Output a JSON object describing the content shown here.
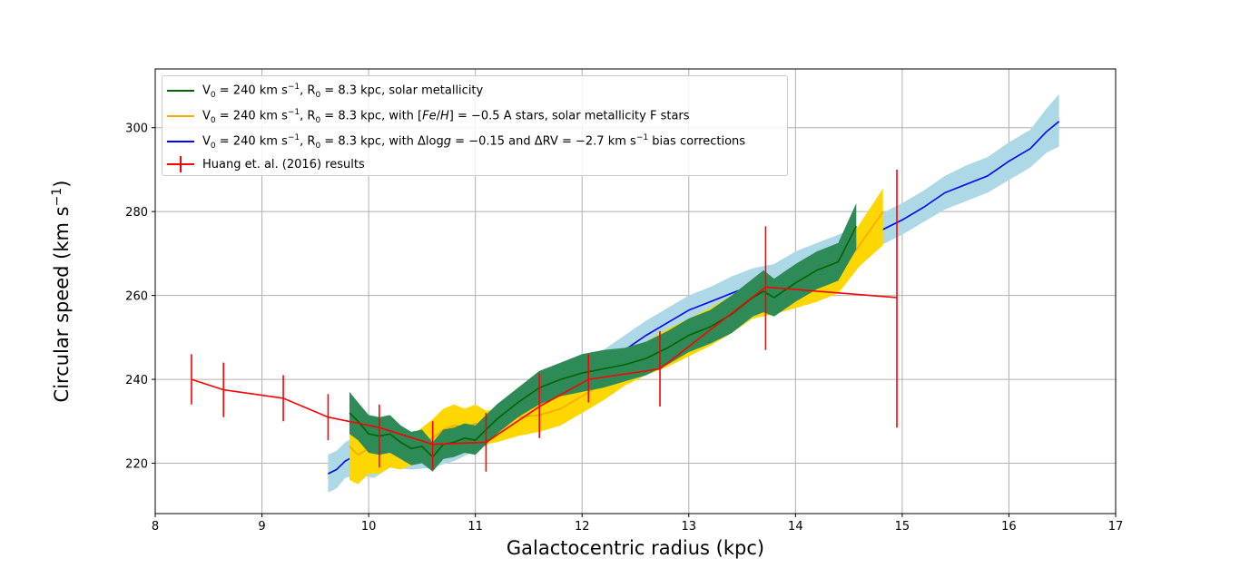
{
  "chart_data": {
    "type": "line",
    "xlabel": "Galactocentric radius (kpc)",
    "ylabel": "Circular speed (km s$^{-1}$)",
    "xlim": [
      8,
      17
    ],
    "ylim": [
      208,
      314
    ],
    "xticks": [
      8,
      9,
      10,
      11,
      12,
      13,
      14,
      15,
      16,
      17
    ],
    "yticks": [
      220,
      240,
      260,
      280,
      300
    ],
    "grid": true,
    "legend_position": "top-left",
    "legend": {
      "green": "V0 = 240 km s^-1, R0 = 8.3 kpc, solar metallicity",
      "yellow": "V0 = 240 km s^-1, R0 = 8.3 kpc, with [Fe/H] = -0.5 A stars, solar metallicity F stars",
      "blue": "V0 = 240 km s^-1, R0 = 8.3 kpc, with Δlogg = -0.15 and ΔRV = -2.7 km s^-1 bias corrections",
      "red": "Huang et. al. (2016) results"
    },
    "series": [
      {
        "key": "blue",
        "color": "#0000ff",
        "band_color": "#add8e6",
        "x": [
          9.62,
          9.7,
          9.78,
          9.85,
          9.95,
          10.05,
          10.2,
          10.4,
          10.6,
          10.8,
          11.0,
          11.2,
          11.4,
          11.6,
          11.8,
          12.0,
          12.2,
          12.4,
          12.6,
          12.8,
          13.0,
          13.2,
          13.4,
          13.6,
          13.8,
          14.0,
          14.2,
          14.4,
          14.6,
          14.8,
          15.0,
          15.2,
          15.4,
          15.6,
          15.8,
          16.0,
          16.2,
          16.35,
          16.47
        ],
        "y": [
          217.5,
          218.5,
          220.5,
          221.5,
          221.0,
          220.0,
          222.5,
          221.5,
          222.0,
          223.5,
          226.0,
          228.5,
          231.5,
          234.5,
          237.5,
          240.0,
          243.5,
          247.0,
          250.5,
          253.5,
          256.5,
          258.5,
          260.5,
          262.5,
          263.5,
          266.5,
          268.5,
          270.5,
          272.5,
          275.5,
          278.0,
          281.0,
          284.5,
          286.5,
          288.5,
          292.0,
          295.0,
          299.0,
          301.5
        ],
        "lower": [
          213.0,
          214.0,
          216.5,
          217.0,
          217.0,
          216.5,
          219.0,
          218.5,
          219.0,
          220.5,
          223.0,
          225.5,
          228.5,
          231.5,
          234.5,
          237.0,
          240.0,
          243.5,
          247.0,
          250.0,
          253.0,
          255.0,
          257.0,
          259.0,
          260.0,
          263.0,
          265.0,
          267.0,
          269.0,
          272.0,
          274.5,
          277.5,
          280.5,
          282.5,
          284.5,
          287.5,
          290.5,
          294.0,
          295.5
        ],
        "upper": [
          222.0,
          223.0,
          225.0,
          226.0,
          225.5,
          224.0,
          226.5,
          225.0,
          225.5,
          227.0,
          229.5,
          232.0,
          235.0,
          238.0,
          241.0,
          243.5,
          247.0,
          250.5,
          254.0,
          257.0,
          260.0,
          262.0,
          264.5,
          266.5,
          267.5,
          270.5,
          272.5,
          274.5,
          276.5,
          279.5,
          282.0,
          285.0,
          288.5,
          291.0,
          293.0,
          296.5,
          299.5,
          304.5,
          308.0
        ]
      },
      {
        "key": "yellow",
        "color": "#ffa500",
        "band_color": "#ffd700",
        "x": [
          9.82,
          9.9,
          10.0,
          10.1,
          10.2,
          10.3,
          10.4,
          10.5,
          10.6,
          10.7,
          10.8,
          10.9,
          11.0,
          11.1,
          11.2,
          11.4,
          11.6,
          11.8,
          12.0,
          12.2,
          12.4,
          12.6,
          12.8,
          13.0,
          13.2,
          13.4,
          13.6,
          13.8,
          14.0,
          14.2,
          14.4,
          14.6,
          14.82
        ],
        "y": [
          224.0,
          222.0,
          223.5,
          222.5,
          224.0,
          222.5,
          223.0,
          224.5,
          226.0,
          228.0,
          229.0,
          228.5,
          229.5,
          228.5,
          229.0,
          231.0,
          231.5,
          233.0,
          236.0,
          239.0,
          242.5,
          245.0,
          247.5,
          250.0,
          252.5,
          255.5,
          259.0,
          259.5,
          261.0,
          263.0,
          265.0,
          272.0,
          280.0
        ],
        "lower": [
          216.0,
          215.0,
          217.5,
          217.5,
          219.0,
          218.5,
          219.5,
          220.5,
          221.5,
          223.0,
          224.0,
          224.0,
          225.0,
          224.5,
          225.0,
          226.5,
          227.5,
          229.0,
          232.0,
          235.0,
          238.5,
          241.0,
          243.0,
          245.5,
          248.0,
          251.0,
          254.5,
          255.5,
          257.0,
          258.5,
          260.5,
          267.0,
          272.0
        ],
        "upper": [
          232.0,
          229.0,
          229.5,
          227.5,
          229.0,
          226.5,
          226.5,
          228.5,
          230.5,
          233.0,
          234.0,
          233.0,
          234.0,
          232.5,
          233.0,
          235.5,
          235.5,
          237.0,
          240.0,
          243.0,
          246.5,
          249.0,
          252.0,
          254.5,
          257.0,
          260.0,
          263.5,
          263.5,
          265.0,
          267.5,
          269.5,
          277.0,
          285.5
        ]
      },
      {
        "key": "green",
        "color": "#006400",
        "band_color": "#2e8b57",
        "x": [
          9.82,
          9.9,
          10.0,
          10.1,
          10.2,
          10.3,
          10.4,
          10.5,
          10.6,
          10.7,
          10.8,
          10.9,
          11.0,
          11.1,
          11.2,
          11.4,
          11.6,
          11.8,
          12.0,
          12.2,
          12.4,
          12.6,
          12.8,
          13.0,
          13.2,
          13.4,
          13.6,
          13.7,
          13.8,
          14.0,
          14.2,
          14.4,
          14.57
        ],
        "y": [
          232.0,
          230.0,
          227.0,
          226.5,
          227.0,
          225.0,
          223.5,
          224.0,
          221.5,
          224.5,
          225.0,
          226.0,
          225.5,
          228.0,
          230.5,
          234.5,
          238.0,
          240.0,
          241.5,
          242.5,
          243.5,
          245.0,
          247.5,
          250.5,
          252.5,
          255.5,
          259.5,
          261.0,
          259.5,
          263.0,
          266.0,
          268.0,
          276.5
        ],
        "lower": [
          227.0,
          225.5,
          222.5,
          222.0,
          222.5,
          221.0,
          219.5,
          220.0,
          218.0,
          221.0,
          221.5,
          222.5,
          222.0,
          224.5,
          227.0,
          231.0,
          234.0,
          236.0,
          237.0,
          238.0,
          239.5,
          241.0,
          243.5,
          246.5,
          248.5,
          251.0,
          255.0,
          256.0,
          255.0,
          258.5,
          261.5,
          263.5,
          271.0
        ],
        "upper": [
          237.0,
          234.5,
          231.5,
          231.0,
          231.5,
          229.0,
          227.5,
          228.0,
          225.0,
          228.0,
          228.5,
          229.5,
          229.0,
          231.5,
          234.0,
          238.0,
          242.0,
          244.0,
          246.0,
          247.0,
          247.5,
          249.0,
          251.5,
          254.5,
          256.5,
          260.0,
          264.0,
          266.0,
          264.0,
          267.5,
          270.5,
          272.5,
          282.0
        ]
      },
      {
        "key": "red",
        "color": "#ff0000",
        "errorbars": true,
        "x": [
          8.34,
          8.64,
          9.2,
          9.62,
          10.1,
          10.6,
          11.1,
          11.6,
          12.06,
          12.73,
          13.72,
          14.95
        ],
        "y": [
          240.0,
          237.5,
          235.5,
          231.0,
          228.5,
          224.5,
          225.0,
          233.5,
          240.0,
          242.5,
          262.0,
          259.5
        ],
        "lower": [
          234.0,
          231.0,
          230.0,
          225.5,
          219.0,
          218.5,
          218.0,
          226.0,
          234.5,
          233.5,
          247.0,
          228.5
        ],
        "upper": [
          246.0,
          244.0,
          241.0,
          236.5,
          234.0,
          230.0,
          232.0,
          241.5,
          246.0,
          251.5,
          276.5,
          290.0
        ]
      }
    ]
  }
}
